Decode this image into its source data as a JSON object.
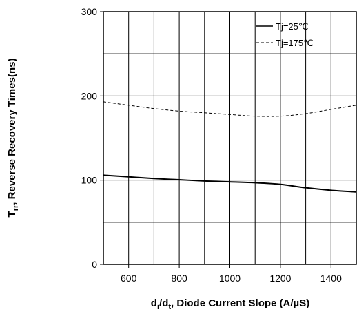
{
  "chart_data": {
    "type": "line",
    "xlabel": "d_i/d_t, Diode Current Slope (A/µS)",
    "xlabel_parts": {
      "d1": "d",
      "sub1": "i",
      "slash": "/d",
      "sub2": "t",
      "rest": ", Diode Current Slope (A/µS)"
    },
    "ylabel": "T_rr, Reverse Recovery Times(ns)",
    "ylabel_parts": {
      "main": "T",
      "sub": "rr",
      "rest": ", Reverse Recovery Times(ns)"
    },
    "xlim": [
      500,
      1500
    ],
    "ylim": [
      0,
      300
    ],
    "x_ticks": [
      600,
      800,
      1000,
      1200,
      1400
    ],
    "y_ticks": [
      0,
      100,
      200,
      300
    ],
    "x_grid_step": 100,
    "y_grid_step": 50,
    "grid": true,
    "legend_position": "top-right",
    "series": [
      {
        "name": "Tj=25℃",
        "style": "solid",
        "color": "#000000",
        "x": [
          500,
          600,
          700,
          800,
          900,
          1000,
          1100,
          1200,
          1300,
          1400,
          1500
        ],
        "y": [
          106,
          104,
          102,
          100.5,
          99,
          98,
          97,
          95,
          91,
          88,
          86
        ]
      },
      {
        "name": "Tj=175℃",
        "style": "dashed",
        "color": "#000000",
        "x": [
          500,
          600,
          700,
          800,
          900,
          1000,
          1100,
          1200,
          1300,
          1400,
          1500
        ],
        "y": [
          193,
          189,
          185,
          182,
          180,
          178,
          176,
          176,
          179,
          184,
          189
        ]
      }
    ]
  }
}
